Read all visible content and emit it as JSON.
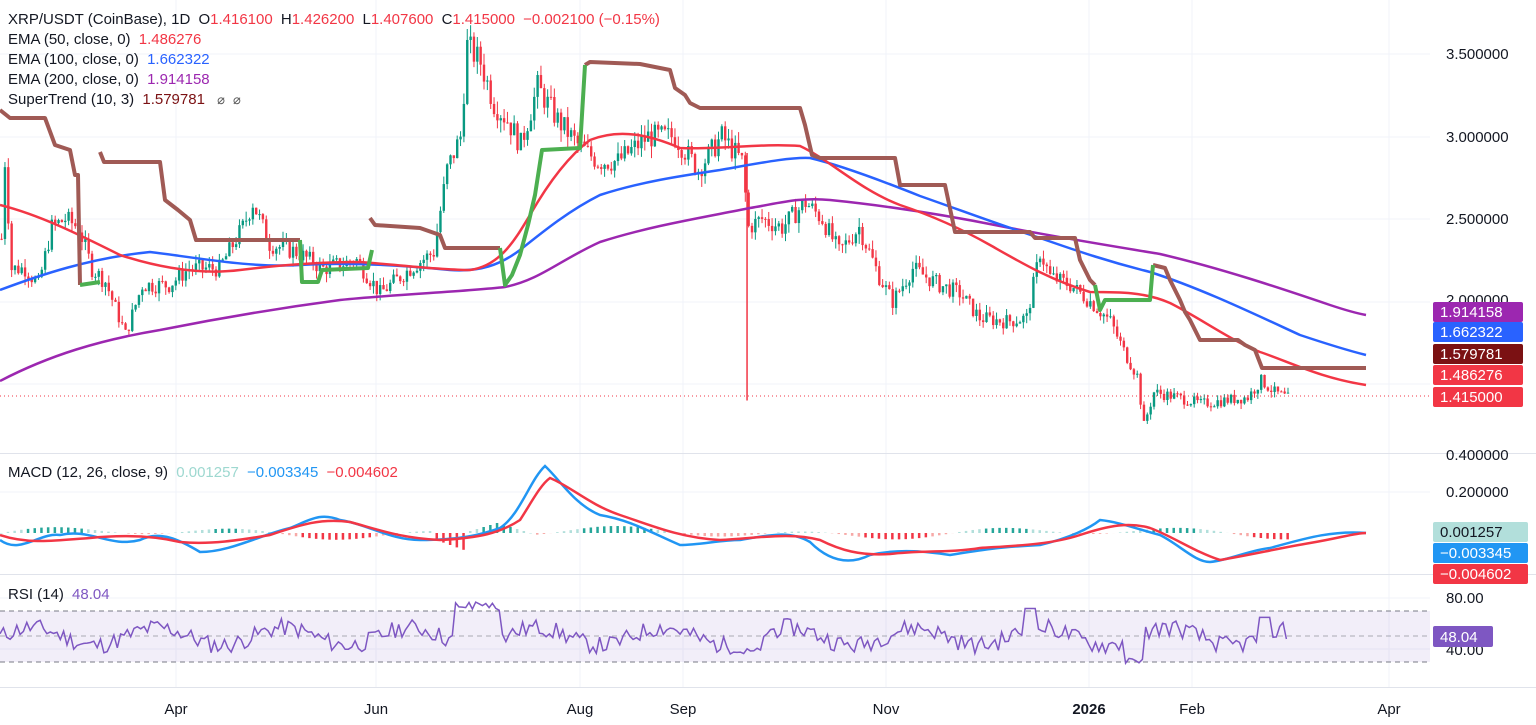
{
  "header": {
    "symbol": "XRP/USDT (CoinBase), 1D",
    "o_label": "O",
    "o": "1.416100",
    "h_label": "H",
    "h": "1.426200",
    "l_label": "L",
    "l": "1.407600",
    "c_label": "C",
    "c": "1.415000",
    "change": "−0.002100 (−0.15%)"
  },
  "indicators": {
    "ema50": {
      "label": "EMA (50, close, 0)",
      "value": "1.486276",
      "color": "#f23645"
    },
    "ema100": {
      "label": "EMA (100, close, 0)",
      "value": "1.662322",
      "color": "#2962ff"
    },
    "ema200": {
      "label": "EMA (200, close, 0)",
      "value": "1.914158",
      "color": "#9c27b0"
    },
    "supertrend": {
      "label": "SuperTrend (10, 3)",
      "value": "1.579781",
      "color": "#7b1113",
      "icons": [
        "eye-off-icon",
        "eye-off-icon"
      ]
    }
  },
  "macd": {
    "label": "MACD (12, 26, close, 9)",
    "hist": "0.001257",
    "macd": "−0.003345",
    "signal": "−0.004602",
    "hist_color": "#26a69a",
    "macd_color": "#2196f3",
    "signal_color": "#f23645"
  },
  "rsi": {
    "label": "RSI (14)",
    "value": "48.04",
    "color": "#7e57c2"
  },
  "chart_data": {
    "type": "candlestick",
    "price_axis": {
      "ticks": [
        3.5,
        3.0,
        2.5,
        2.0,
        0.4
      ],
      "tick_labels": [
        "3.500000",
        "3.000000",
        "2.500000",
        "2.000000",
        "0.400000"
      ]
    },
    "macd_axis": {
      "ticks": [
        0.2
      ],
      "tick_labels": [
        "0.200000"
      ]
    },
    "rsi_axis": {
      "ticks": [
        80,
        40
      ],
      "tick_labels": [
        "80.00",
        "40.00"
      ],
      "bands": [
        70,
        50,
        30
      ]
    },
    "x_axis": {
      "labels": [
        "Apr",
        "Jun",
        "Aug",
        "Sep",
        "Nov",
        "2026",
        "Feb",
        "Apr"
      ],
      "bold": [
        false,
        false,
        false,
        false,
        false,
        true,
        false,
        false
      ]
    },
    "price_tags": [
      {
        "value": "1.914158",
        "color": "#9c27b0"
      },
      {
        "value": "1.662322",
        "color": "#2962ff"
      },
      {
        "value": "1.579781",
        "color": "#7b1113"
      },
      {
        "value": "1.486276",
        "color": "#f23645"
      },
      {
        "value": "1.415000",
        "color": "#f23645"
      }
    ],
    "macd_tags": [
      {
        "value": "0.001257",
        "color": "#b2dfdb",
        "text_color": "#131722"
      },
      {
        "value": "−0.003345",
        "color": "#2196f3",
        "text_color": "#ffffff"
      },
      {
        "value": "−0.004602",
        "color": "#f23645",
        "text_color": "#ffffff"
      }
    ],
    "rsi_tag": {
      "value": "48.04",
      "color": "#7e57c2"
    },
    "close_series": [
      {
        "x": "2025-03-01",
        "y": 2.38
      },
      {
        "x": "2025-03-02",
        "y": 2.85
      },
      {
        "x": "2025-03-04",
        "y": 2.2
      },
      {
        "x": "2025-03-08",
        "y": 2.2
      },
      {
        "x": "2025-03-12",
        "y": 2.1
      },
      {
        "x": "2025-03-16",
        "y": 2.45
      },
      {
        "x": "2025-03-20",
        "y": 2.5
      },
      {
        "x": "2025-03-24",
        "y": 2.45
      },
      {
        "x": "2025-03-28",
        "y": 2.2
      },
      {
        "x": "2025-04-01",
        "y": 2.12
      },
      {
        "x": "2025-04-07",
        "y": 1.8
      },
      {
        "x": "2025-04-12",
        "y": 2.1
      },
      {
        "x": "2025-04-20",
        "y": 2.1
      },
      {
        "x": "2025-04-26",
        "y": 2.2
      },
      {
        "x": "2025-05-05",
        "y": 2.2
      },
      {
        "x": "2025-05-12",
        "y": 2.45
      },
      {
        "x": "2025-05-15",
        "y": 2.6
      },
      {
        "x": "2025-05-20",
        "y": 2.35
      },
      {
        "x": "2025-05-28",
        "y": 2.3
      },
      {
        "x": "2025-06-05",
        "y": 2.2
      },
      {
        "x": "2025-06-15",
        "y": 2.25
      },
      {
        "x": "2025-06-22",
        "y": 2.05
      },
      {
        "x": "2025-07-01",
        "y": 2.2
      },
      {
        "x": "2025-07-08",
        "y": 2.3
      },
      {
        "x": "2025-07-12",
        "y": 2.8
      },
      {
        "x": "2025-07-16",
        "y": 3.0
      },
      {
        "x": "2025-07-18",
        "y": 3.55
      },
      {
        "x": "2025-07-22",
        "y": 3.45
      },
      {
        "x": "2025-07-26",
        "y": 3.2
      },
      {
        "x": "2025-07-30",
        "y": 3.1
      },
      {
        "x": "2025-08-03",
        "y": 2.95
      },
      {
        "x": "2025-08-08",
        "y": 3.3
      },
      {
        "x": "2025-08-14",
        "y": 3.1
      },
      {
        "x": "2025-08-20",
        "y": 2.95
      },
      {
        "x": "2025-08-26",
        "y": 2.85
      },
      {
        "x": "2025-09-01",
        "y": 2.85
      },
      {
        "x": "2025-09-10",
        "y": 3.0
      },
      {
        "x": "2025-09-18",
        "y": 3.0
      },
      {
        "x": "2025-09-25",
        "y": 2.8
      },
      {
        "x": "2025-10-02",
        "y": 3.0
      },
      {
        "x": "2025-10-08",
        "y": 2.85
      },
      {
        "x": "2025-10-10",
        "y": 2.45
      },
      {
        "x": "2025-10-14",
        "y": 2.5
      },
      {
        "x": "2025-10-20",
        "y": 2.45
      },
      {
        "x": "2025-10-27",
        "y": 2.6
      },
      {
        "x": "2025-11-01",
        "y": 2.5
      },
      {
        "x": "2025-11-06",
        "y": 2.3
      },
      {
        "x": "2025-11-12",
        "y": 2.45
      },
      {
        "x": "2025-11-18",
        "y": 2.15
      },
      {
        "x": "2025-11-22",
        "y": 2.0
      },
      {
        "x": "2025-11-28",
        "y": 2.2
      },
      {
        "x": "2025-12-06",
        "y": 2.1
      },
      {
        "x": "2025-12-12",
        "y": 2.05
      },
      {
        "x": "2025-12-18",
        "y": 1.9
      },
      {
        "x": "2025-12-26",
        "y": 1.88
      },
      {
        "x": "2026-01-01",
        "y": 1.9
      },
      {
        "x": "2026-01-05",
        "y": 2.3
      },
      {
        "x": "2026-01-08",
        "y": 2.15
      },
      {
        "x": "2026-01-14",
        "y": 2.1
      },
      {
        "x": "2026-01-20",
        "y": 2.0
      },
      {
        "x": "2026-01-26",
        "y": 1.88
      },
      {
        "x": "2026-01-30",
        "y": 1.7
      },
      {
        "x": "2026-02-03",
        "y": 1.55
      },
      {
        "x": "2026-02-05",
        "y": 1.25
      },
      {
        "x": "2026-02-08",
        "y": 1.45
      },
      {
        "x": "2026-02-15",
        "y": 1.42
      },
      {
        "x": "2026-02-22",
        "y": 1.38
      },
      {
        "x": "2026-03-01",
        "y": 1.4
      },
      {
        "x": "2026-03-08",
        "y": 1.42
      },
      {
        "x": "2026-03-12",
        "y": 1.52
      },
      {
        "x": "2026-03-16",
        "y": 1.45
      },
      {
        "x": "2026-03-20",
        "y": 1.415
      }
    ]
  }
}
